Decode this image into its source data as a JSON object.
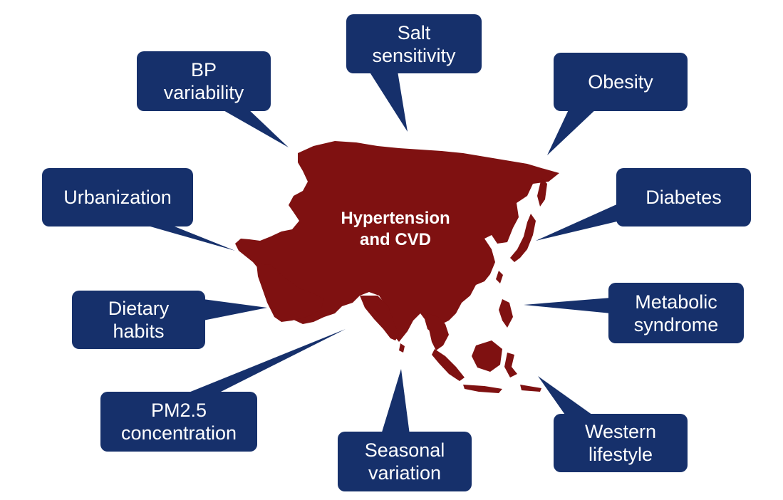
{
  "center": {
    "line1": "Hypertension",
    "line2": "and CVD"
  },
  "factors": {
    "salt": [
      "Salt",
      "sensitivity"
    ],
    "bp": [
      "BP",
      "variability"
    ],
    "obesity": [
      "Obesity"
    ],
    "urbanization": [
      "Urbanization"
    ],
    "diabetes": [
      "Diabetes"
    ],
    "dietary": [
      "Dietary",
      "habits"
    ],
    "metabolic": [
      "Metabolic",
      "syndrome"
    ],
    "pm": [
      "PM2.5",
      "concentration"
    ],
    "seasonal": [
      "Seasonal",
      "variation"
    ],
    "western": [
      "Western",
      "lifestyle"
    ]
  },
  "colors": {
    "bubble": "#16306b",
    "map": "#7f1111",
    "text": "#ffffff"
  },
  "icons": {
    "map": "asia-map-icon"
  }
}
